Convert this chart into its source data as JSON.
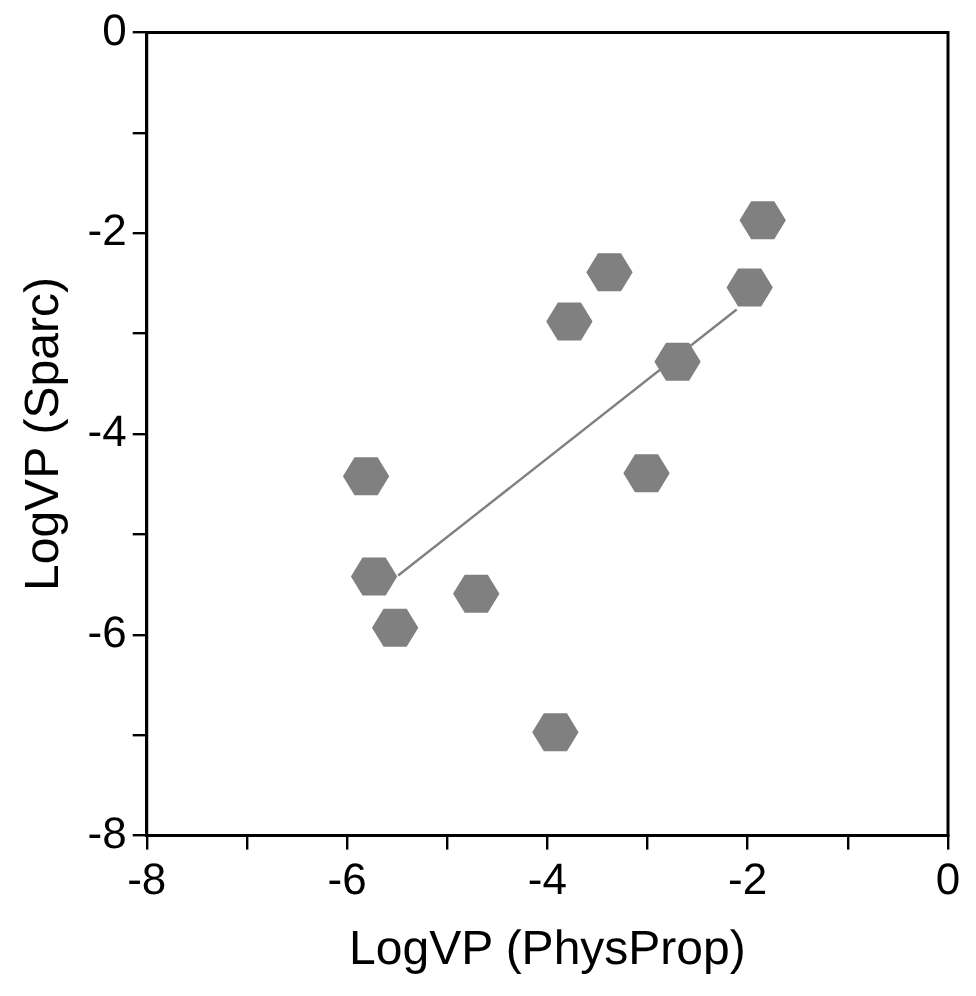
{
  "chart_data": {
    "type": "scatter",
    "xlabel": "LogVP (PhysProp)",
    "ylabel": "LogVP (Sparc)",
    "xlim": [
      -8,
      0
    ],
    "ylim": [
      -8,
      0
    ],
    "xticks": [
      -8,
      {
        "value": -7,
        "label": null
      },
      -6,
      {
        "value": -5,
        "label": null
      },
      -4,
      {
        "value": -3,
        "label": null
      },
      -2,
      {
        "value": -1,
        "label": null
      },
      0
    ],
    "yticks": [
      -8,
      {
        "value": -7,
        "label": null
      },
      -6,
      {
        "value": -5,
        "label": null
      },
      -4,
      {
        "value": -3,
        "label": null
      },
      -2,
      {
        "value": -1,
        "label": null
      },
      0
    ],
    "grid": false,
    "legend": false,
    "series": [
      {
        "type": "scatter",
        "color": "#808080",
        "x": [
          -1.85,
          -1.98,
          -3.38,
          -3.78,
          -2.7,
          -3.01,
          -5.81,
          -5.73,
          -5.52,
          -4.71,
          -3.92
        ],
        "values": [
          -1.87,
          -2.54,
          -2.39,
          -2.88,
          -3.28,
          -4.39,
          -4.42,
          -5.42,
          -5.93,
          -5.59,
          -6.97
        ]
      },
      {
        "type": "line",
        "color": "#808080",
        "x": [
          -5.49,
          -2.11
        ],
        "values": [
          -5.41,
          -2.76
        ]
      }
    ]
  }
}
